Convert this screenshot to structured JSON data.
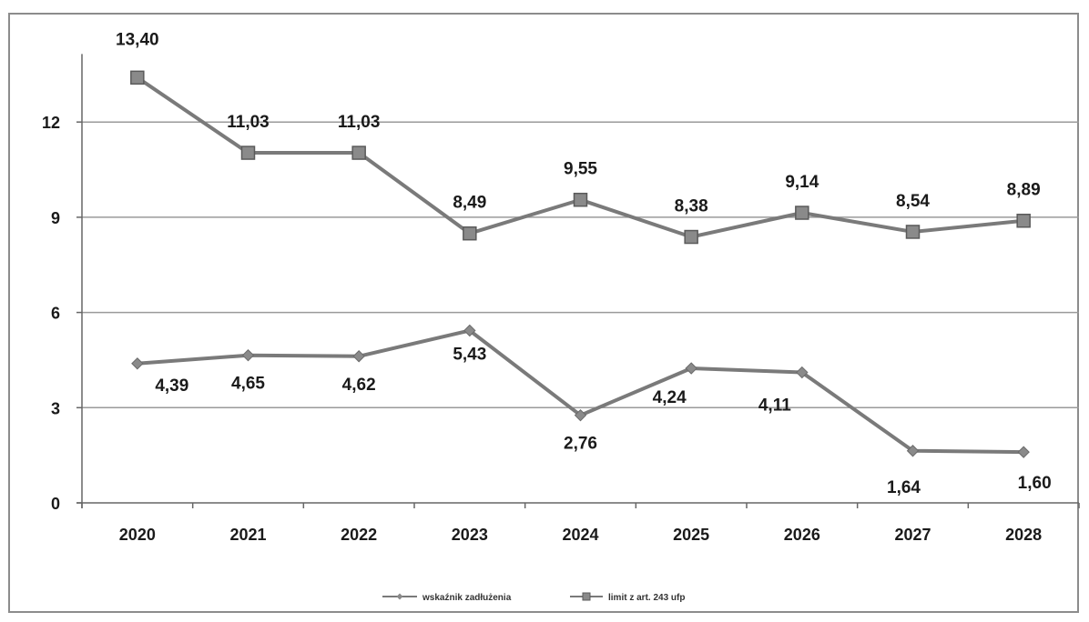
{
  "chart_data": {
    "type": "line",
    "categories": [
      "2020",
      "2021",
      "2022",
      "2023",
      "2024",
      "2025",
      "2026",
      "2027",
      "2028"
    ],
    "series": [
      {
        "name": "wskaźnik zadłużenia",
        "marker": "diamond",
        "values": [
          4.39,
          4.65,
          4.62,
          5.43,
          2.76,
          4.24,
          4.11,
          1.64,
          1.6
        ],
        "labels": [
          "4,39",
          "4,65",
          "4,62",
          "5,43",
          "2,76",
          "4,24",
          "4,11",
          "1,64",
          "1,60"
        ]
      },
      {
        "name": "limit z art. 243 ufp",
        "marker": "square",
        "values": [
          13.4,
          11.03,
          11.03,
          8.49,
          9.55,
          8.38,
          9.14,
          8.54,
          8.89
        ],
        "labels": [
          "13,40",
          "11,03",
          "11,03",
          "8,49",
          "9,55",
          "8,38",
          "9,14",
          "8,54",
          "8,89"
        ]
      }
    ],
    "yticks": [
      "0",
      "3",
      "6",
      "9",
      "12"
    ],
    "ylim": [
      0,
      14
    ],
    "grid": true,
    "legend": "bottom",
    "colors": {
      "line": "#7a7a7a",
      "marker": "#8a8a8a",
      "grid": "#9a9a9a",
      "axis": "#666666"
    }
  }
}
